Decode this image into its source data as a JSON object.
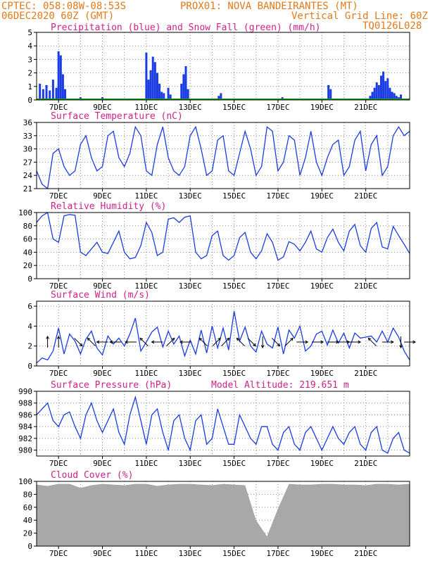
{
  "header": {
    "line1_left": "CPTEC:   058:08W-08:53S",
    "line1_right": "PROX01: NOVA BANDEIRANTES (MT)",
    "line2_left": "06DEC2020 60Z (GMT)",
    "line2_right": "Vertical Grid Line: 60Z",
    "line2_code": "TQ0126L028"
  },
  "colors": {
    "header": "#e07a1a",
    "title": "#d0208a",
    "line": "#1a3ce0",
    "bar": "#1a3ce0",
    "snow": "#1a9a1a",
    "cloud": "#a8a8a8",
    "grid": "#888888"
  },
  "dates": [
    "7DEC",
    "9DEC",
    "11DEC",
    "13DEC",
    "15DEC",
    "17DEC",
    "19DEC",
    "21DEC"
  ],
  "chart_data": [
    {
      "type": "bar",
      "id": "precip",
      "title": "Precipitation (blue) and Snow Fall (green) (mm/h)",
      "ylim": [
        0,
        5
      ],
      "yticks": [
        0,
        1,
        2,
        3,
        4,
        5
      ],
      "x": [
        0.15,
        0.3,
        0.45,
        0.6,
        0.75,
        0.9,
        1.0,
        1.1,
        1.2,
        1.3,
        2.0,
        3.0,
        5.0,
        5.1,
        5.2,
        5.3,
        5.4,
        5.5,
        5.6,
        5.7,
        5.8,
        6.0,
        6.1,
        6.6,
        6.7,
        6.8,
        6.9,
        8.3,
        8.4,
        11.2,
        11.3,
        13.3,
        13.4,
        15.2,
        15.3,
        15.4,
        15.5,
        15.6,
        15.7,
        15.8,
        15.9,
        16.0,
        16.1,
        16.2,
        16.3,
        16.4,
        16.5,
        16.6
      ],
      "values": [
        1.2,
        0.8,
        1.1,
        0.7,
        1.5,
        0.9,
        3.6,
        3.3,
        1.9,
        0.8,
        0.2,
        0.2,
        3.5,
        1.5,
        2.2,
        3.2,
        2.8,
        2.0,
        1.2,
        0.6,
        0.5,
        0.9,
        0.4,
        1.2,
        1.9,
        2.5,
        0.8,
        0.3,
        0.5,
        0.2,
        0.1,
        1.1,
        0.8,
        0.3,
        0.6,
        0.9,
        1.3,
        1.1,
        1.8,
        2.1,
        1.4,
        1.6,
        0.9,
        0.6,
        0.5,
        0.3,
        0.2,
        0.4
      ],
      "snow": [
        0,
        0
      ]
    },
    {
      "type": "line",
      "id": "temp",
      "title": "Surface Temperature (nC)",
      "ylim": [
        21,
        36
      ],
      "yticks": [
        21,
        24,
        27,
        30,
        33,
        36
      ],
      "x": [
        0,
        0.25,
        0.5,
        0.75,
        1,
        1.25,
        1.5,
        1.75,
        2,
        2.25,
        2.5,
        2.75,
        3,
        3.25,
        3.5,
        3.75,
        4,
        4.25,
        4.5,
        4.75,
        5,
        5.25,
        5.5,
        5.75,
        6,
        6.25,
        6.5,
        6.75,
        7,
        7.25,
        7.5,
        7.75,
        8,
        8.25,
        8.5,
        8.75,
        9,
        9.25,
        9.5,
        9.75,
        10,
        10.25,
        10.5,
        10.75,
        11,
        11.25,
        11.5,
        11.75,
        12,
        12.25,
        12.5,
        12.75,
        13,
        13.25,
        13.5,
        13.75,
        14,
        14.25,
        14.5,
        14.75,
        15,
        15.25,
        15.5,
        15.75,
        16,
        16.25,
        16.5,
        16.75,
        17
      ],
      "values": [
        25,
        22,
        21,
        29,
        30,
        26,
        24,
        25,
        31,
        33,
        28,
        25,
        26,
        33,
        34,
        28,
        26,
        29,
        35,
        33,
        25,
        24,
        31,
        35,
        28,
        25,
        24,
        26,
        33,
        35,
        30,
        24,
        25,
        32,
        33,
        25,
        24,
        29,
        34,
        30,
        24,
        26,
        35,
        34,
        25,
        27,
        33,
        32,
        24,
        28,
        34,
        27,
        24,
        28,
        31,
        32,
        24,
        26,
        32,
        34,
        25,
        31,
        33,
        24,
        26,
        33,
        35,
        33,
        34
      ]
    },
    {
      "type": "line",
      "id": "rh",
      "title": "Relative Humidity (%)",
      "ylim": [
        0,
        100
      ],
      "yticks": [
        0,
        20,
        40,
        60,
        80,
        100
      ],
      "x": [
        0,
        0.25,
        0.5,
        0.75,
        1,
        1.25,
        1.5,
        1.75,
        2,
        2.25,
        2.5,
        2.75,
        3,
        3.25,
        3.5,
        3.75,
        4,
        4.25,
        4.5,
        4.75,
        5,
        5.25,
        5.5,
        5.75,
        6,
        6.25,
        6.5,
        6.75,
        7,
        7.25,
        7.5,
        7.75,
        8,
        8.25,
        8.5,
        8.75,
        9,
        9.25,
        9.5,
        9.75,
        10,
        10.25,
        10.5,
        10.75,
        11,
        11.25,
        11.5,
        11.75,
        12,
        12.25,
        12.5,
        12.75,
        13,
        13.25,
        13.5,
        13.75,
        14,
        14.25,
        14.5,
        14.75,
        15,
        15.25,
        15.5,
        15.75,
        16,
        16.25,
        16.5,
        16.75,
        17
      ],
      "values": [
        85,
        95,
        100,
        60,
        55,
        95,
        97,
        96,
        40,
        35,
        45,
        55,
        40,
        38,
        55,
        72,
        40,
        30,
        32,
        50,
        85,
        70,
        35,
        40,
        90,
        92,
        85,
        93,
        95,
        40,
        30,
        35,
        65,
        72,
        35,
        28,
        35,
        62,
        70,
        40,
        30,
        42,
        68,
        55,
        28,
        33,
        56,
        52,
        42,
        55,
        72,
        45,
        40,
        62,
        75,
        55,
        42,
        72,
        82,
        50,
        40,
        76,
        85,
        48,
        45,
        79,
        65,
        52,
        38
      ]
    },
    {
      "type": "line",
      "id": "wind",
      "title": "Surface Wind (m/s)",
      "ylim": [
        0,
        6.5
      ],
      "yticks": [
        0,
        2,
        4,
        6
      ],
      "x": [
        0,
        0.25,
        0.5,
        0.75,
        1,
        1.25,
        1.5,
        1.75,
        2,
        2.25,
        2.5,
        2.75,
        3,
        3.25,
        3.5,
        3.75,
        4,
        4.25,
        4.5,
        4.75,
        5,
        5.25,
        5.5,
        5.75,
        6,
        6.25,
        6.5,
        6.75,
        7,
        7.25,
        7.5,
        7.75,
        8,
        8.25,
        8.5,
        8.75,
        9,
        9.25,
        9.5,
        9.75,
        10,
        10.25,
        10.5,
        10.75,
        11,
        11.25,
        11.5,
        11.75,
        12,
        12.25,
        12.5,
        12.75,
        13,
        13.25,
        13.5,
        13.75,
        14,
        14.25,
        14.5,
        14.75,
        15,
        15.25,
        15.5,
        15.75,
        16,
        16.25,
        16.5,
        16.75,
        17
      ],
      "values": [
        0.3,
        0.8,
        0.6,
        1.5,
        3.8,
        1.2,
        3.2,
        2.5,
        1.2,
        2.7,
        3.5,
        1.8,
        1.1,
        3.0,
        2.2,
        2.8,
        2.0,
        3.2,
        4.8,
        1.5,
        2.4,
        3.4,
        3.9,
        1.9,
        3.5,
        2.2,
        3.0,
        1.0,
        2.6,
        1.2,
        3.6,
        1.3,
        4.0,
        1.8,
        3.8,
        1.6,
        5.5,
        2.5,
        3.9,
        2.0,
        1.4,
        3.5,
        2.2,
        1.8,
        3.9,
        1.2,
        3.6,
        2.8,
        4.0,
        1.5,
        2.0,
        3.2,
        3.5,
        2.1,
        3.6,
        2.3,
        3.3,
        1.8,
        3.3,
        2.8,
        2.9,
        3.0,
        2.4,
        3.5,
        2.4,
        3.8,
        2.9,
        1.5,
        0.6
      ],
      "vectors": [
        {
          "x": 0.5,
          "dir": "N"
        },
        {
          "x": 1.0,
          "dir": "N"
        },
        {
          "x": 1.9,
          "dir": "SE"
        },
        {
          "x": 2.5,
          "dir": "NW"
        },
        {
          "x": 3.0,
          "dir": "W"
        },
        {
          "x": 3.6,
          "dir": "W"
        },
        {
          "x": 4.3,
          "dir": "W"
        },
        {
          "x": 4.9,
          "dir": "NW"
        },
        {
          "x": 5.5,
          "dir": "W"
        },
        {
          "x": 6.1,
          "dir": "NE"
        },
        {
          "x": 6.8,
          "dir": "W"
        },
        {
          "x": 7.6,
          "dir": "NW"
        },
        {
          "x": 8.2,
          "dir": "NE"
        },
        {
          "x": 8.6,
          "dir": "NE"
        },
        {
          "x": 9.3,
          "dir": "NW"
        },
        {
          "x": 9.8,
          "dir": "SE"
        },
        {
          "x": 10.3,
          "dir": "S"
        },
        {
          "x": 10.9,
          "dir": "SE"
        },
        {
          "x": 11.5,
          "dir": "NE"
        },
        {
          "x": 12.1,
          "dir": "E"
        },
        {
          "x": 12.8,
          "dir": "E"
        },
        {
          "x": 13.5,
          "dir": "E"
        },
        {
          "x": 14.0,
          "dir": "E"
        },
        {
          "x": 14.5,
          "dir": "E"
        },
        {
          "x": 15.3,
          "dir": "NW"
        },
        {
          "x": 16.0,
          "dir": "E"
        },
        {
          "x": 16.6,
          "dir": "S"
        },
        {
          "x": 17.0,
          "dir": "E"
        }
      ]
    },
    {
      "type": "line",
      "id": "press",
      "title": "Surface Pressure (hPa)",
      "subtitle": "Model Altitude: 219.651 m",
      "ylim": [
        979,
        990
      ],
      "yticks": [
        980,
        982,
        984,
        986,
        988,
        990
      ],
      "x": [
        0,
        0.25,
        0.5,
        0.75,
        1,
        1.25,
        1.5,
        1.75,
        2,
        2.25,
        2.5,
        2.75,
        3,
        3.25,
        3.5,
        3.75,
        4,
        4.25,
        4.5,
        4.75,
        5,
        5.25,
        5.5,
        5.75,
        6,
        6.25,
        6.5,
        6.75,
        7,
        7.25,
        7.5,
        7.75,
        8,
        8.25,
        8.5,
        8.75,
        9,
        9.25,
        9.5,
        9.75,
        10,
        10.25,
        10.5,
        10.75,
        11,
        11.25,
        11.5,
        11.75,
        12,
        12.25,
        12.5,
        12.75,
        13,
        13.25,
        13.5,
        13.75,
        14,
        14.25,
        14.5,
        14.75,
        15,
        15.25,
        15.5,
        15.75,
        16,
        16.25,
        16.5,
        16.75,
        17
      ],
      "values": [
        986,
        987,
        988,
        985,
        984,
        986,
        986.5,
        984,
        982,
        986,
        988,
        985,
        983,
        985,
        987,
        983,
        981,
        986,
        989,
        985,
        981,
        986,
        987,
        983,
        980,
        985,
        986,
        982,
        980,
        985,
        986,
        981,
        982,
        987,
        984,
        981,
        981,
        986,
        984,
        982,
        981,
        984,
        984,
        981,
        980,
        983,
        984,
        981,
        980,
        983,
        984,
        982,
        980,
        982,
        984,
        982,
        981,
        983,
        984,
        981,
        980,
        983,
        984,
        980,
        979.5,
        982,
        983,
        980,
        979.5
      ]
    },
    {
      "type": "area",
      "id": "cloud",
      "title": "Cloud Cover (%)",
      "ylim": [
        0,
        100
      ],
      "yticks": [
        0,
        20,
        40,
        60,
        80,
        100
      ],
      "x": [
        0,
        0.5,
        1,
        1.5,
        2,
        2.5,
        3,
        3.5,
        4,
        4.5,
        5,
        5.5,
        6,
        6.5,
        7,
        7.5,
        8,
        8.5,
        9,
        9.5,
        10,
        10.5,
        11,
        11.5,
        12,
        12.5,
        13,
        13.5,
        14,
        14.5,
        15,
        15.5,
        16,
        16.5,
        17
      ],
      "values": [
        95,
        93,
        96,
        96,
        90,
        94,
        96,
        95,
        94,
        96,
        96,
        93,
        95,
        96,
        96,
        95,
        94,
        96,
        95,
        94,
        40,
        15,
        58,
        96,
        95,
        95,
        96,
        96,
        95,
        95,
        94,
        96,
        96,
        95,
        96
      ]
    }
  ]
}
